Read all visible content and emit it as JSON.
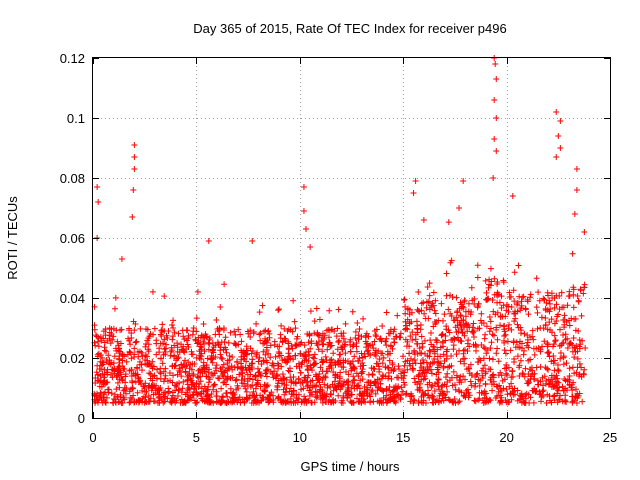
{
  "chart_data": {
    "type": "scatter",
    "title": "Day 365 of 2015, Rate Of TEC Index for receiver p496",
    "xlabel": "GPS time / hours",
    "ylabel": "ROTI / TECUs",
    "xlim": [
      0,
      25
    ],
    "ylim": [
      0,
      0.12
    ],
    "xticks": [
      0,
      5,
      10,
      15,
      20,
      25
    ],
    "xtick_labels": [
      "0",
      "5",
      "10",
      "15",
      "20",
      "25"
    ],
    "yticks": [
      0,
      0.02,
      0.04,
      0.06,
      0.08,
      0.1,
      0.12
    ],
    "ytick_labels": [
      "0",
      "0.02",
      "0.04",
      "0.06",
      "0.08",
      "0.1",
      "0.12"
    ],
    "grid": true,
    "marker": "+",
    "series_color": "#ff0000",
    "series": [
      {
        "name": "ROTI",
        "x_range": [
          0,
          23.8
        ],
        "typical_range": [
          0.005,
          0.03
        ],
        "peaks": [
          {
            "x": 0.2,
            "y": 0.077
          },
          {
            "x": 0.25,
            "y": 0.072
          },
          {
            "x": 0.2,
            "y": 0.06
          },
          {
            "x": 1.4,
            "y": 0.053
          },
          {
            "x": 2.0,
            "y": 0.091
          },
          {
            "x": 2.0,
            "y": 0.087
          },
          {
            "x": 2.0,
            "y": 0.083
          },
          {
            "x": 1.95,
            "y": 0.076
          },
          {
            "x": 1.9,
            "y": 0.067
          },
          {
            "x": 5.6,
            "y": 0.059
          },
          {
            "x": 7.7,
            "y": 0.059
          },
          {
            "x": 10.2,
            "y": 0.077
          },
          {
            "x": 10.2,
            "y": 0.069
          },
          {
            "x": 10.3,
            "y": 0.063
          },
          {
            "x": 10.5,
            "y": 0.057
          },
          {
            "x": 15.6,
            "y": 0.079
          },
          {
            "x": 15.5,
            "y": 0.075
          },
          {
            "x": 16.0,
            "y": 0.066
          },
          {
            "x": 17.9,
            "y": 0.079
          },
          {
            "x": 17.7,
            "y": 0.07
          },
          {
            "x": 19.4,
            "y": 0.12
          },
          {
            "x": 19.45,
            "y": 0.118
          },
          {
            "x": 19.5,
            "y": 0.113
          },
          {
            "x": 19.4,
            "y": 0.106
          },
          {
            "x": 19.5,
            "y": 0.1
          },
          {
            "x": 19.4,
            "y": 0.093
          },
          {
            "x": 19.5,
            "y": 0.089
          },
          {
            "x": 19.35,
            "y": 0.08
          },
          {
            "x": 20.3,
            "y": 0.074
          },
          {
            "x": 22.4,
            "y": 0.102
          },
          {
            "x": 22.6,
            "y": 0.099
          },
          {
            "x": 22.5,
            "y": 0.094
          },
          {
            "x": 22.6,
            "y": 0.09
          },
          {
            "x": 22.4,
            "y": 0.087
          },
          {
            "x": 23.4,
            "y": 0.083
          },
          {
            "x": 23.4,
            "y": 0.076
          },
          {
            "x": 23.3,
            "y": 0.068
          }
        ]
      }
    ]
  }
}
